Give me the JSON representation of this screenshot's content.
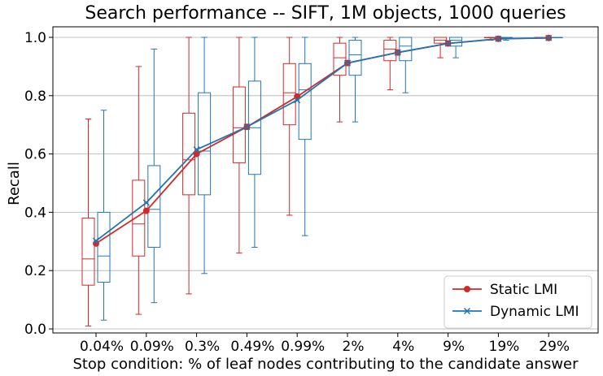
{
  "chart_data": {
    "type": "box",
    "title": "Search performance -- SIFT, 1M objects, 1000 queries",
    "xlabel": "Stop condition: % of leaf nodes contributing to the candidate answer",
    "ylabel": "Recall",
    "categories": [
      "0.04%",
      "0.09%",
      "0.3%",
      "0.49%",
      "0.99%",
      "2%",
      "4%",
      "9%",
      "19%",
      "29%"
    ],
    "ylim": [
      0.0,
      1.0
    ],
    "yticks": [
      0.0,
      0.2,
      0.4,
      0.6,
      0.8,
      1.0
    ],
    "ytick_labels": [
      "0.0",
      "0.2",
      "0.4",
      "0.6",
      "0.8",
      "1.0"
    ],
    "grid": "horizontal",
    "legend_position": "lower-right",
    "series": [
      {
        "name": "Static LMI",
        "color": "#d62728",
        "marker": "circle",
        "means": [
          0.293,
          0.405,
          0.6,
          0.693,
          0.797,
          0.912,
          0.948,
          0.979,
          0.995,
          0.998
        ],
        "boxes": [
          {
            "whislo": 0.01,
            "q1": 0.15,
            "med": 0.24,
            "q3": 0.38,
            "whishi": 0.72
          },
          {
            "whislo": 0.05,
            "q1": 0.25,
            "med": 0.36,
            "q3": 0.51,
            "whishi": 0.9
          },
          {
            "whislo": 0.12,
            "q1": 0.46,
            "med": 0.58,
            "q3": 0.74,
            "whishi": 1.0
          },
          {
            "whislo": 0.26,
            "q1": 0.57,
            "med": 0.69,
            "q3": 0.83,
            "whishi": 1.0
          },
          {
            "whislo": 0.39,
            "q1": 0.7,
            "med": 0.81,
            "q3": 0.91,
            "whishi": 1.0
          },
          {
            "whislo": 0.71,
            "q1": 0.87,
            "med": 0.93,
            "q3": 0.98,
            "whishi": 1.0
          },
          {
            "whislo": 0.82,
            "q1": 0.92,
            "med": 0.96,
            "q3": 0.99,
            "whishi": 1.0
          },
          {
            "whislo": 0.93,
            "q1": 0.98,
            "med": 0.99,
            "q3": 1.0,
            "whishi": 1.0
          },
          {
            "whislo": 0.99,
            "q1": 1.0,
            "med": 1.0,
            "q3": 1.0,
            "whishi": 1.0
          },
          {
            "whislo": 1.0,
            "q1": 1.0,
            "med": 1.0,
            "q3": 1.0,
            "whishi": 1.0
          }
        ]
      },
      {
        "name": "Dynamic LMI",
        "color": "#1f77b4",
        "marker": "x",
        "means": [
          0.302,
          0.433,
          0.615,
          0.693,
          0.785,
          0.912,
          0.948,
          0.979,
          0.995,
          0.998
        ],
        "boxes": [
          {
            "whislo": 0.03,
            "q1": 0.16,
            "med": 0.25,
            "q3": 0.4,
            "whishi": 0.75
          },
          {
            "whislo": 0.09,
            "q1": 0.28,
            "med": 0.41,
            "q3": 0.56,
            "whishi": 0.96
          },
          {
            "whislo": 0.19,
            "q1": 0.46,
            "med": 0.61,
            "q3": 0.81,
            "whishi": 1.0
          },
          {
            "whislo": 0.28,
            "q1": 0.53,
            "med": 0.69,
            "q3": 0.85,
            "whishi": 1.0
          },
          {
            "whislo": 0.32,
            "q1": 0.65,
            "med": 0.82,
            "q3": 0.91,
            "whishi": 1.0
          },
          {
            "whislo": 0.71,
            "q1": 0.87,
            "med": 0.94,
            "q3": 0.99,
            "whishi": 1.0
          },
          {
            "whislo": 0.81,
            "q1": 0.92,
            "med": 0.97,
            "q3": 1.0,
            "whishi": 1.0
          },
          {
            "whislo": 0.93,
            "q1": 0.97,
            "med": 0.99,
            "q3": 1.0,
            "whishi": 1.0
          },
          {
            "whislo": 0.99,
            "q1": 1.0,
            "med": 1.0,
            "q3": 1.0,
            "whishi": 1.0
          },
          {
            "whislo": 1.0,
            "q1": 1.0,
            "med": 1.0,
            "q3": 1.0,
            "whishi": 1.0
          }
        ]
      }
    ]
  }
}
